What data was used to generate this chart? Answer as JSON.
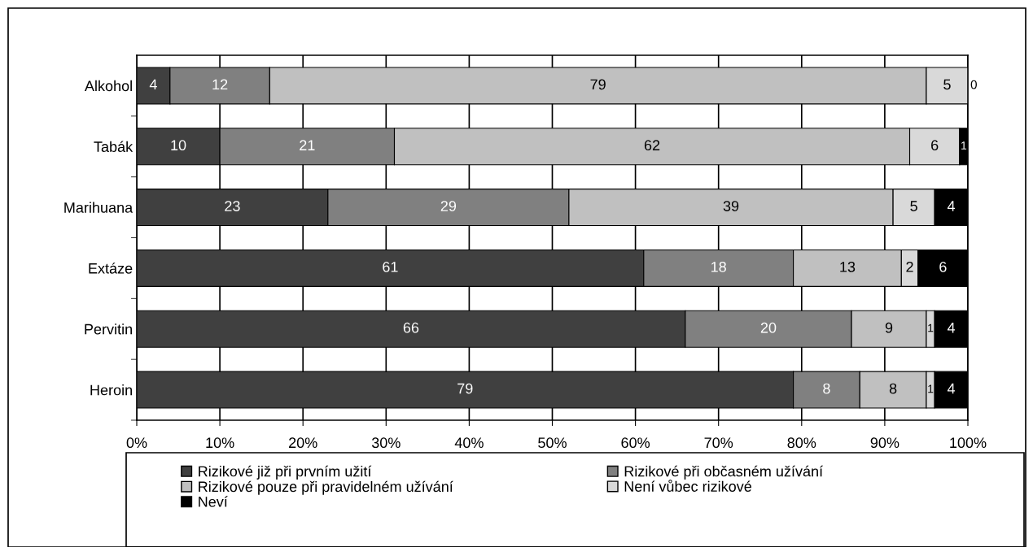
{
  "chart_data": {
    "type": "bar",
    "orientation": "horizontal",
    "stacked": true,
    "categories": [
      "Alkohol",
      "Tabák",
      "Marihuana",
      "Extáze",
      "Pervitin",
      "Heroin"
    ],
    "series": [
      {
        "name": "Rizikové již při prvním užití",
        "color": "#404040",
        "values": [
          4,
          10,
          23,
          61,
          66,
          79
        ]
      },
      {
        "name": "Rizikové při občasném užívání",
        "color": "#808080",
        "values": [
          12,
          21,
          29,
          18,
          20,
          8
        ]
      },
      {
        "name": "Rizikové pouze při pravidelném užívání",
        "color": "#c0c0c0",
        "values": [
          79,
          62,
          39,
          13,
          9,
          8
        ]
      },
      {
        "name": "Není vůbec rizikové",
        "color": "#d9d9d9",
        "values": [
          5,
          6,
          5,
          2,
          1,
          1
        ]
      },
      {
        "name": "Neví",
        "color": "#000000",
        "values": [
          0,
          1,
          4,
          6,
          4,
          4
        ]
      }
    ],
    "xlim": [
      0,
      100
    ],
    "xticks": [
      {
        "value": 0,
        "label": "0%"
      },
      {
        "value": 10,
        "label": "10%"
      },
      {
        "value": 20,
        "label": "20%"
      },
      {
        "value": 30,
        "label": "30%"
      },
      {
        "value": 40,
        "label": "40%"
      },
      {
        "value": 50,
        "label": "50%"
      },
      {
        "value": 60,
        "label": "60%"
      },
      {
        "value": 70,
        "label": "70%"
      },
      {
        "value": 80,
        "label": "80%"
      },
      {
        "value": 90,
        "label": "90%"
      },
      {
        "value": 100,
        "label": "100%"
      }
    ],
    "grid": "x",
    "legend": "bottom",
    "data_labels": true
  }
}
